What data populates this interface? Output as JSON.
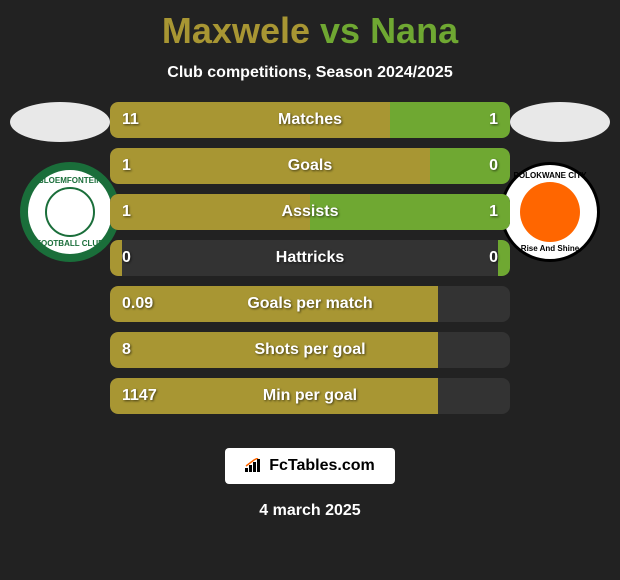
{
  "header": {
    "player1": "Maxwele",
    "vs": "vs",
    "player2": "Nana",
    "subtitle": "Club competitions, Season 2024/2025"
  },
  "colors": {
    "player1": "#a89633",
    "player2": "#6fa832",
    "background": "#222222",
    "bar_track": "#333333"
  },
  "clubs": {
    "left": {
      "name_top": "BLOEMFONTEIN",
      "name_bottom": "FOOTBALL CLUB",
      "badge_bg": "#1a6e3a"
    },
    "right": {
      "name_top": "POLOKWANE CITY",
      "name_bottom": "Rise And Shine",
      "badge_bg": "#ff6600"
    }
  },
  "stats": [
    {
      "label": "Matches",
      "left_value": "11",
      "right_value": "1",
      "left_pct": 70,
      "right_pct": 30
    },
    {
      "label": "Goals",
      "left_value": "1",
      "right_value": "0",
      "left_pct": 80,
      "right_pct": 20
    },
    {
      "label": "Assists",
      "left_value": "1",
      "right_value": "1",
      "left_pct": 50,
      "right_pct": 50
    },
    {
      "label": "Hattricks",
      "left_value": "0",
      "right_value": "0",
      "left_pct": 3,
      "right_pct": 3
    },
    {
      "label": "Goals per match",
      "left_value": "0.09",
      "right_value": "",
      "left_pct": 82,
      "right_pct": 0
    },
    {
      "label": "Shots per goal",
      "left_value": "8",
      "right_value": "",
      "left_pct": 82,
      "right_pct": 0
    },
    {
      "label": "Min per goal",
      "left_value": "1147",
      "right_value": "",
      "left_pct": 82,
      "right_pct": 0
    }
  ],
  "footer": {
    "logo_text": "FcTables.com",
    "date": "4 march 2025"
  }
}
